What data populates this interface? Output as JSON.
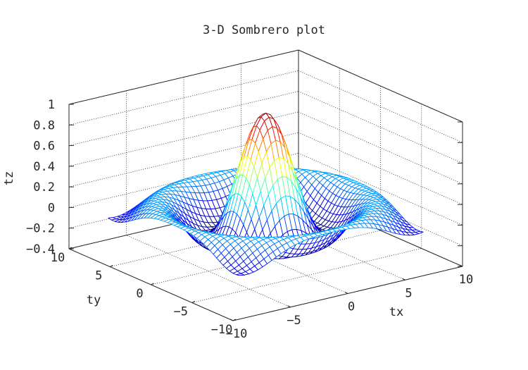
{
  "chart_data": {
    "type": "surface-mesh",
    "title": "3-D Sombrero plot",
    "xlabel": "tx",
    "ylabel": "ty",
    "zlabel": "tz",
    "function": "z = sin(r)/r, r = sqrt(x^2 + y^2 + eps)",
    "x": {
      "min": -8,
      "max": 8,
      "count": 41
    },
    "y": {
      "min": -8,
      "max": 8,
      "count": 41
    },
    "xlim": [
      -10,
      10
    ],
    "ylim": [
      -10,
      10
    ],
    "zlim": [
      -0.4,
      1
    ],
    "xticks": [
      "−10",
      "−5",
      "0",
      "5",
      "10"
    ],
    "yticks": [
      "−10",
      "−5",
      "0",
      "5",
      "10"
    ],
    "zticks": [
      "−0.4",
      "−0.2",
      "0",
      "0.2",
      "0.4",
      "0.6",
      "0.8",
      "1"
    ],
    "xtick_values": [
      -10,
      -5,
      0,
      5,
      10
    ],
    "ytick_values": [
      -10,
      -5,
      0,
      5,
      10
    ],
    "ztick_values": [
      -0.4,
      -0.2,
      0,
      0.2,
      0.4,
      0.6,
      0.8,
      1
    ],
    "grid": true,
    "colormap": "jet",
    "colors": {
      "axes": "#262626",
      "grid": "#262626",
      "jet": [
        "#00008f",
        "#0000ff",
        "#00ffff",
        "#ffff00",
        "#ff0000",
        "#800000"
      ]
    }
  }
}
